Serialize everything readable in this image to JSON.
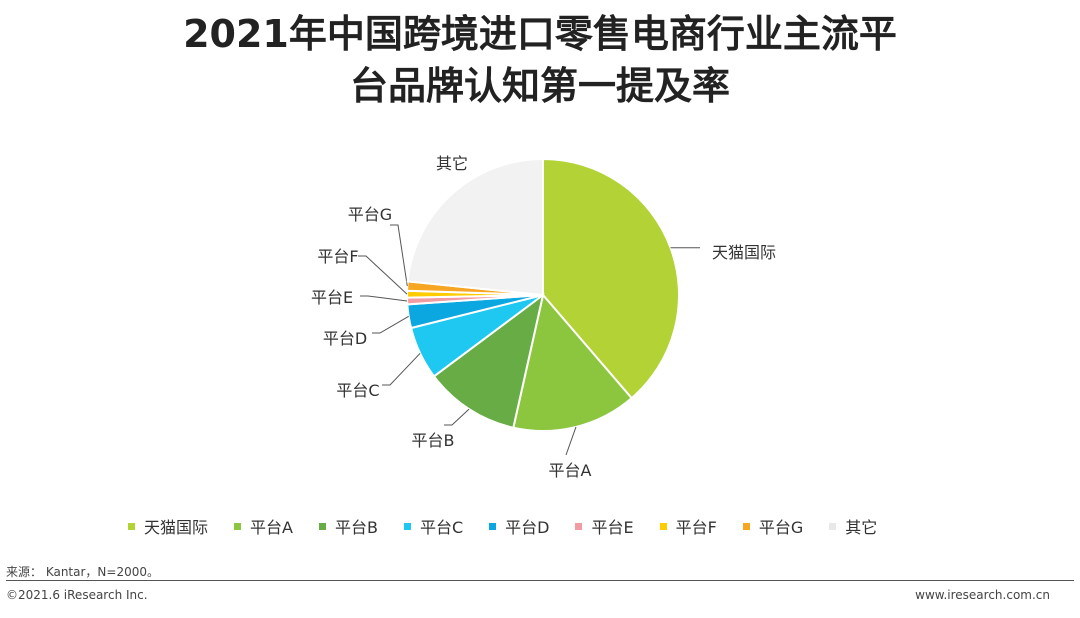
{
  "title_line1": "2021年中国跨境进口零售电商行业主流平",
  "title_line2": "台品牌认知第一提及率",
  "source": "来源： Kantar，N=2000。",
  "copyright": "©2021.6 iResearch Inc.",
  "website": "www.iresearch.com.cn",
  "chart_data": {
    "type": "pie",
    "start_angle_deg": 0,
    "direction": "clockwise",
    "legend_position": "bottom",
    "slices": [
      {
        "name": "天猫国际",
        "value": 38.7,
        "color": "#b2d235"
      },
      {
        "name": "平台A",
        "value": 14.8,
        "color": "#8cc63f"
      },
      {
        "name": "平台B",
        "value": 11.3,
        "color": "#67ac45"
      },
      {
        "name": "平台C",
        "value": 6.3,
        "color": "#1ec8f0"
      },
      {
        "name": "平台D",
        "value": 2.8,
        "color": "#0aa7e0"
      },
      {
        "name": "平台E",
        "value": 0.8,
        "color": "#f19ca2"
      },
      {
        "name": "平台F",
        "value": 0.8,
        "color": "#ffcc00"
      },
      {
        "name": "平台G",
        "value": 1.1,
        "color": "#f6a623"
      },
      {
        "name": "其它",
        "value": 23.4,
        "color": "#f2f2f2"
      }
    ]
  }
}
